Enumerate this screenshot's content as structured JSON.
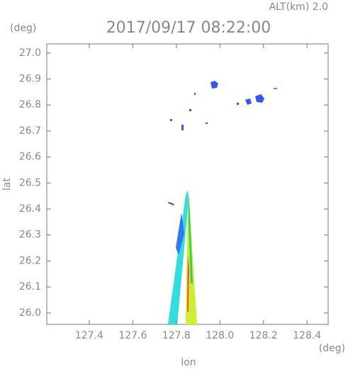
{
  "chart_data": {
    "type": "map-plot",
    "title": "2017/09/17 08:22:00",
    "altitude_label": "ALT(km) 2.0",
    "x_label": "lon",
    "y_label": "lat",
    "x_unit": "(deg)",
    "y_unit": "(deg)",
    "xlim": [
      127.205,
      128.497
    ],
    "ylim": [
      25.956,
      27.035
    ],
    "xticks": [
      127.4,
      127.6,
      127.8,
      {
        "value": 128.0,
        "label": "128.0"
      },
      128.2,
      128.4
    ],
    "yticks": [
      {
        "value": 26.0,
        "label": "26.0"
      },
      26.1,
      26.2,
      26.3,
      26.4,
      26.5,
      26.6,
      26.7,
      26.8,
      26.9,
      {
        "value": 27.0,
        "label": "27.0"
      }
    ]
  }
}
